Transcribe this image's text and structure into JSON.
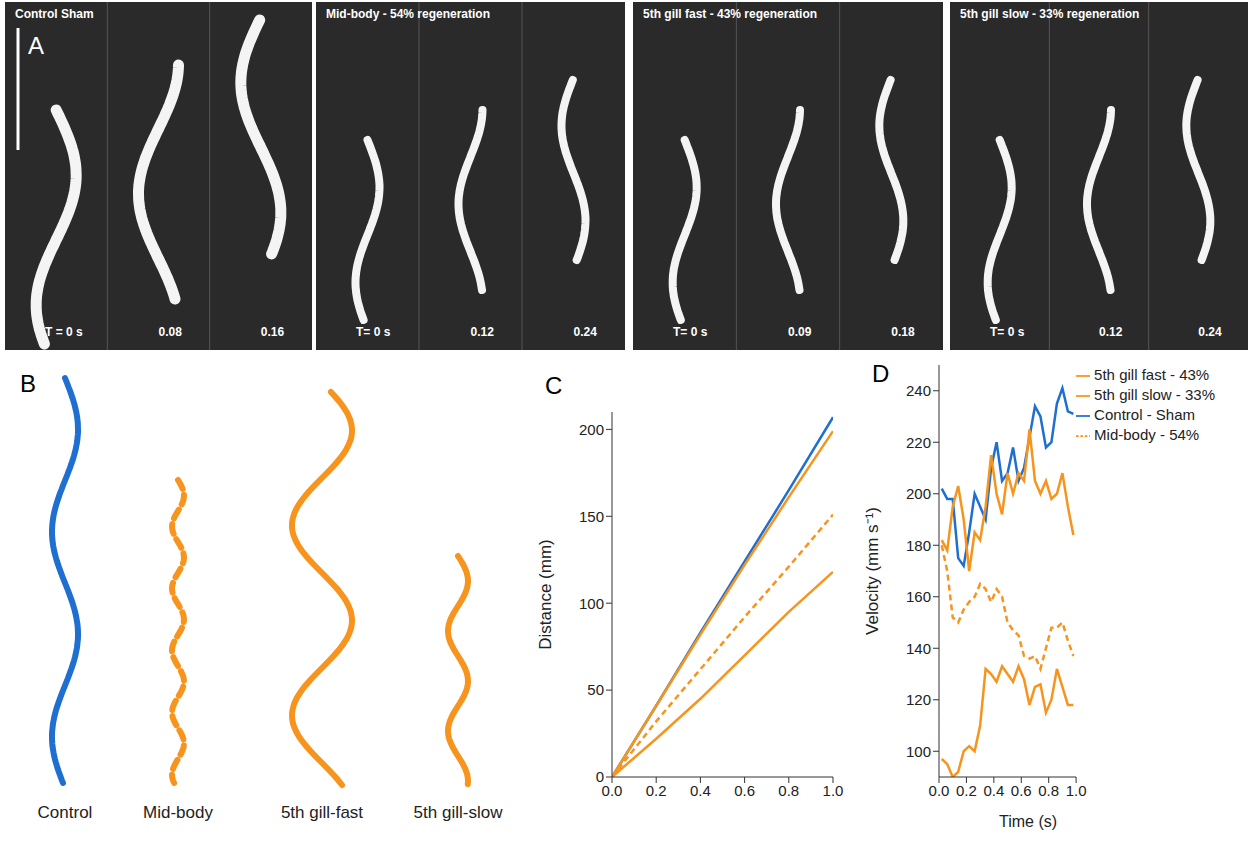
{
  "panel_a": {
    "letter": "A",
    "panels": [
      {
        "title": "Control Sham",
        "times": [
          "T = 0 s",
          "0.08",
          "0.16"
        ]
      },
      {
        "title": "Mid-body - 54% regeneration",
        "times": [
          "T= 0 s",
          "0.12",
          "0.24"
        ]
      },
      {
        "title": "5th gill fast - 43% regeneration",
        "times": [
          "T= 0 s",
          "0.09",
          "0.18"
        ]
      },
      {
        "title": "5th gill slow - 33% regeneration",
        "times": [
          "T= 0 s",
          "0.12",
          "0.24"
        ]
      }
    ]
  },
  "panel_b": {
    "letter": "B",
    "traces": [
      {
        "label": "Control",
        "color": "#1f6fd1",
        "line_style": "solid"
      },
      {
        "label": "Mid-body",
        "color": "#f7941d",
        "line_style": "dashed"
      },
      {
        "label": "5th gill-fast",
        "color": "#f7941d",
        "line_style": "solid"
      },
      {
        "label": "5th gill-slow",
        "color": "#f7941d",
        "line_style": "solid"
      }
    ]
  },
  "chart_data": [
    {
      "type": "line",
      "annotations": [
        "C"
      ],
      "y_label": "Distance (mm)",
      "x": [
        0,
        0.2,
        0.4,
        0.6,
        0.8,
        1.0
      ],
      "xlim": [
        0,
        1
      ],
      "xticks": [
        {
          "value": 0,
          "label": "0.0"
        },
        {
          "value": 0.2,
          "label": "0.2"
        },
        {
          "value": 0.4,
          "label": "0.4"
        },
        {
          "value": 0.6,
          "label": "0.6"
        },
        {
          "value": 0.8,
          "label": "0.8"
        },
        {
          "value": 1,
          "label": "1.0"
        }
      ],
      "ylim": [
        0,
        210
      ],
      "yticks": [
        0,
        50,
        100,
        150,
        200
      ],
      "series": [
        {
          "color": "#1f6fd1",
          "line_style": "solid",
          "values": [
            0,
            41,
            83,
            124,
            165,
            207
          ]
        },
        {
          "color": "#f7941d",
          "line_style": "dashed",
          "values": [
            0,
            32,
            62,
            92,
            121,
            151
          ]
        },
        {
          "color": "#f7941d",
          "line_style": "solid",
          "values": [
            0,
            41,
            82,
            122,
            161,
            199
          ]
        },
        {
          "color": "#f7941d",
          "line_style": "solid",
          "values": [
            0,
            22,
            45,
            70,
            95,
            118
          ]
        }
      ]
    },
    {
      "type": "line",
      "annotations": [
        "D"
      ],
      "x_label": "Time (s)",
      "y_label": "Velocity (mm s⁻¹)",
      "legend": "top-right",
      "x": [
        0.02,
        0.06,
        0.1,
        0.14,
        0.18,
        0.22,
        0.26,
        0.3,
        0.34,
        0.38,
        0.42,
        0.46,
        0.5,
        0.54,
        0.58,
        0.62,
        0.66,
        0.7,
        0.74,
        0.78,
        0.82,
        0.86,
        0.9,
        0.94,
        0.98
      ],
      "xlim": [
        0,
        1
      ],
      "xticks": [
        {
          "value": 0,
          "label": "0.0"
        },
        {
          "value": 0.2,
          "label": "0.2"
        },
        {
          "value": 0.4,
          "label": "0.4"
        },
        {
          "value": 0.6,
          "label": "0.6"
        },
        {
          "value": 0.8,
          "label": "0.8"
        },
        {
          "value": 1,
          "label": "1.0"
        }
      ],
      "ylim": [
        90,
        250
      ],
      "yticks": [
        100,
        120,
        140,
        160,
        180,
        200,
        220,
        240
      ],
      "series": [
        {
          "name": "Control - Sham",
          "color": "#1f6fd1",
          "line_style": "solid",
          "values": [
            202,
            198,
            198,
            175,
            172,
            185,
            200,
            195,
            190,
            210,
            220,
            205,
            208,
            218,
            205,
            210,
            222,
            234,
            230,
            218,
            220,
            235,
            241,
            232,
            231
          ]
        },
        {
          "name": "Mid-body - 54%",
          "color": "#f7941d",
          "line_style": "dashed",
          "values": [
            180,
            170,
            152,
            150,
            155,
            158,
            160,
            165,
            163,
            158,
            163,
            160,
            150,
            147,
            145,
            137,
            136,
            137,
            132,
            140,
            148,
            148,
            150,
            143,
            137
          ]
        },
        {
          "name": "5th gill fast - 43%",
          "color": "#f7941d",
          "line_style": "solid",
          "values": [
            182,
            178,
            195,
            203,
            190,
            170,
            185,
            182,
            195,
            215,
            200,
            192,
            208,
            200,
            208,
            205,
            225,
            205,
            200,
            205,
            198,
            200,
            208,
            195,
            184
          ]
        },
        {
          "name": "5th gill slow - 33%",
          "color": "#f7941d",
          "line_style": "solid",
          "values": [
            97,
            95,
            90,
            92,
            100,
            102,
            100,
            110,
            132,
            130,
            127,
            133,
            130,
            127,
            133,
            128,
            118,
            125,
            126,
            115,
            120,
            132,
            125,
            118,
            118
          ]
        }
      ]
    }
  ]
}
